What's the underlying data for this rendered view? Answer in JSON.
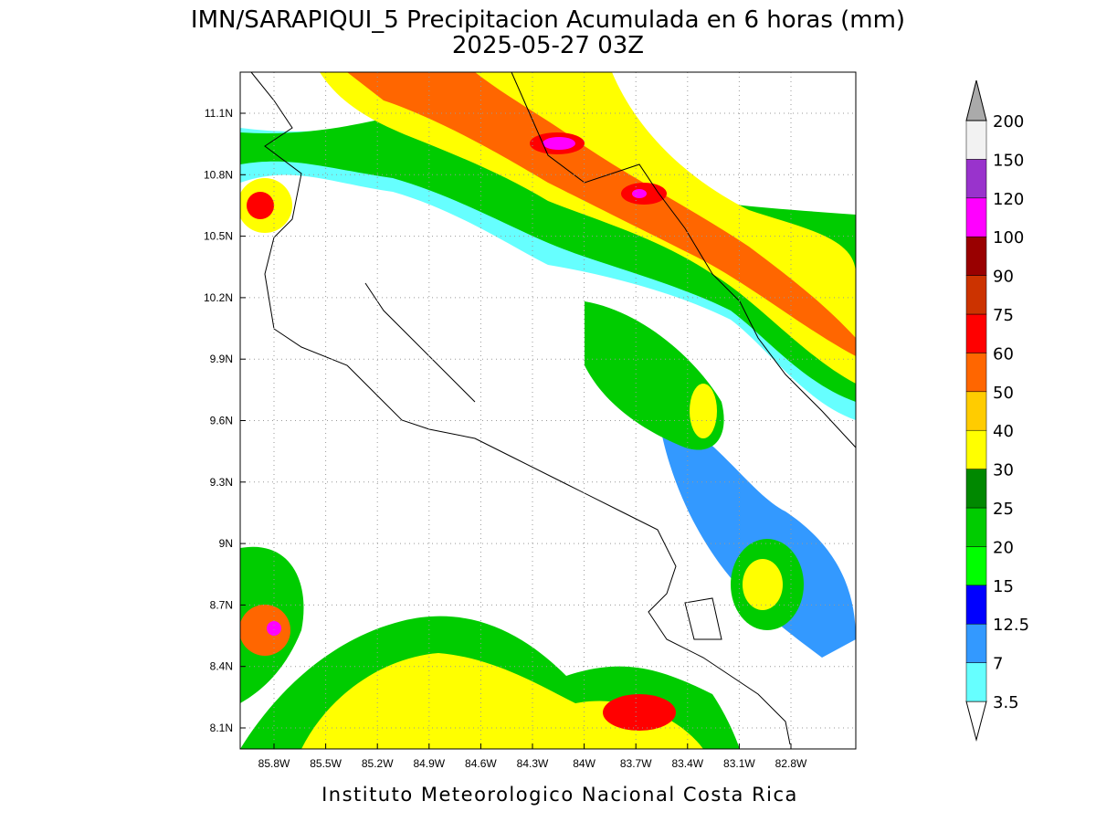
{
  "title": "IMN/SARAPIQUI_5 Precipitacion Acumulada en 6 horas (mm)",
  "subtitle": "2025-05-27 03Z",
  "lat_labels": [
    "11.1N",
    "10.8N",
    "10.5N",
    "10.2N",
    "9.9N",
    "9.6N",
    "9.3N",
    "9N",
    "8.7N",
    "8.4N",
    "8.1N"
  ],
  "lon_labels": [
    "85.8W",
    "85.5W",
    "85.2W",
    "84.9W",
    "84.6W",
    "84.3W",
    "84W",
    "83.7W",
    "83.4W",
    "83.1W",
    "82.8W"
  ],
  "colorbar": {
    "levels": [
      3.5,
      7,
      12.5,
      15,
      20,
      25,
      30,
      40,
      50,
      60,
      75,
      90,
      100,
      120,
      150,
      200
    ],
    "colors": [
      "#ffffff",
      "#66ffff",
      "#3399ff",
      "#0000ff",
      "#00ff00",
      "#00cc00",
      "#008800",
      "#ffff00",
      "#ffcc00",
      "#ff6600",
      "#ff0000",
      "#cc3300",
      "#990000",
      "#ff00ff",
      "#9933cc",
      "#f2f2f2",
      "#aaaaaa"
    ]
  },
  "footer": "Instituto Meteorologico Nacional Costa Rica"
}
